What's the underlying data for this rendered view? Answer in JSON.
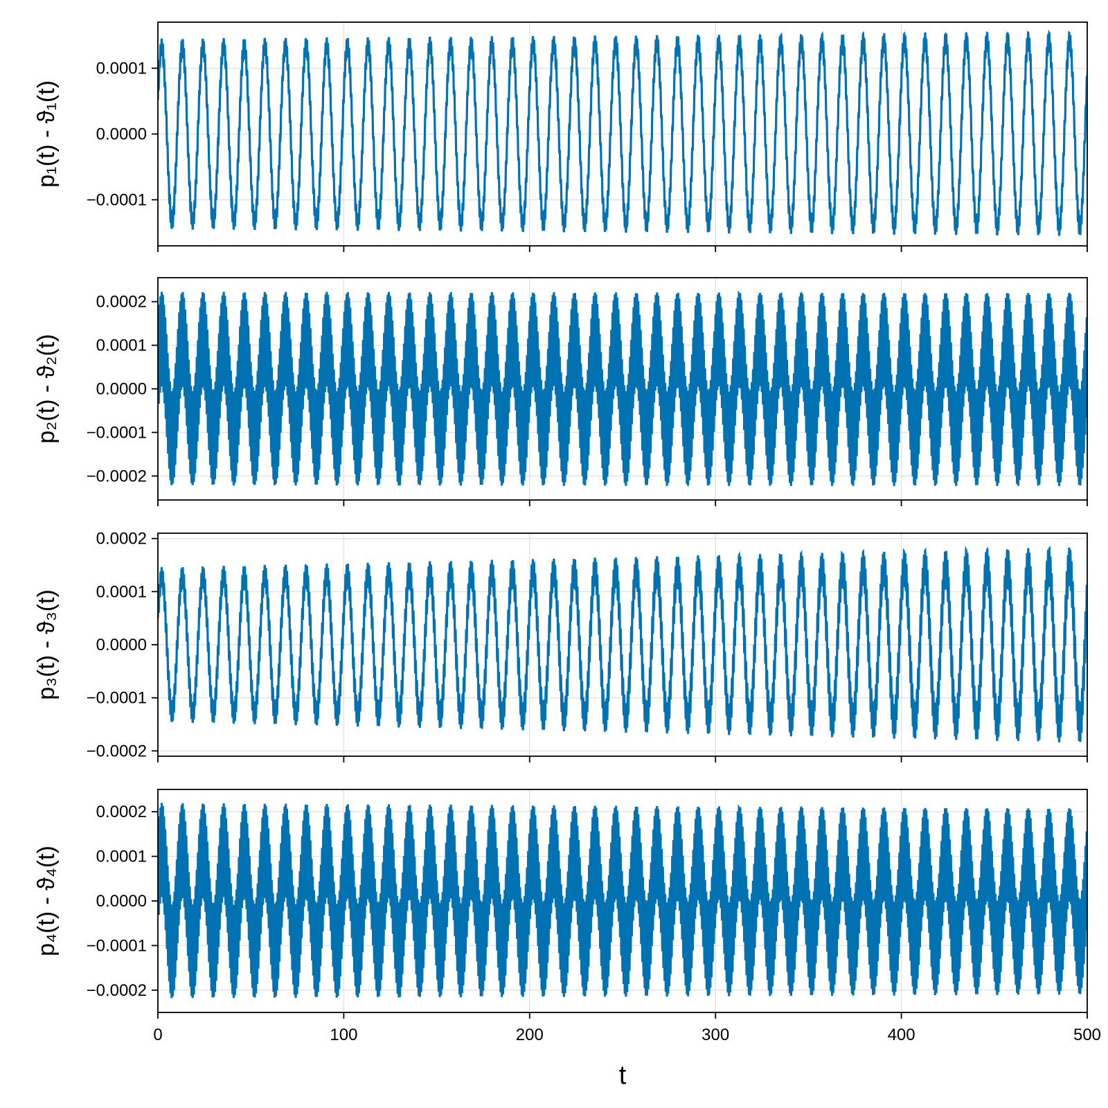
{
  "figure": {
    "line_color": "#0072B2",
    "grid_color": "#e3e3e3",
    "xlabel": "t"
  },
  "chart_data": [
    {
      "type": "line",
      "title": "",
      "ylabel": "p₁(t) - ϑ₁(t)",
      "xlim": [
        0,
        500
      ],
      "ylim": [
        -0.00017,
        0.00017
      ],
      "xticks": [
        0,
        100,
        200,
        300,
        400,
        500
      ],
      "yticks": [
        {
          "value": 0.0001,
          "label": "0.0001"
        },
        {
          "value": 0.0,
          "label": "0.0000"
        },
        {
          "value": -0.0001,
          "label": "−0.0001"
        }
      ],
      "grid": true,
      "series": [
        {
          "signal": {
            "slow_amp": 0.000133,
            "slow_period": 11.1,
            "fast_amp": 1.2e-05,
            "fast_period": 0.63,
            "slow_amp_end": 0.000143,
            "offset": 0.0
          }
        }
      ]
    },
    {
      "type": "line",
      "title": "",
      "ylabel": "p₂(t) - ϑ₂(t)",
      "xlim": [
        0,
        500
      ],
      "ylim": [
        -0.000255,
        0.000255
      ],
      "xticks": [
        0,
        100,
        200,
        300,
        400,
        500
      ],
      "yticks": [
        {
          "value": 0.0002,
          "label": "0.0002"
        },
        {
          "value": 0.0001,
          "label": "0.0001"
        },
        {
          "value": 0.0,
          "label": "0.0000"
        },
        {
          "value": -0.0001,
          "label": "−0.0001"
        },
        {
          "value": -0.0002,
          "label": "−0.0002"
        }
      ],
      "grid": true,
      "series": [
        {
          "signal": {
            "slow_amp": 0.000115,
            "slow_period": 11.1,
            "fast_amp": 0.000108,
            "fast_period": 0.63,
            "slow_amp_end": 0.000115,
            "offset": 0.0
          }
        }
      ]
    },
    {
      "type": "line",
      "title": "",
      "ylabel": "p₃(t) - ϑ₃(t)",
      "xlim": [
        0,
        500
      ],
      "ylim": [
        -0.00021,
        0.00021
      ],
      "xticks": [
        0,
        100,
        200,
        300,
        400,
        500
      ],
      "yticks": [
        {
          "value": 0.0002,
          "label": "0.0002"
        },
        {
          "value": 0.0001,
          "label": "0.0001"
        },
        {
          "value": 0.0,
          "label": "0.0000"
        },
        {
          "value": -0.0001,
          "label": "−0.0001"
        },
        {
          "value": -0.0002,
          "label": "−0.0002"
        }
      ],
      "grid": true,
      "series": [
        {
          "signal": {
            "slow_amp": 0.000128,
            "slow_period": 11.1,
            "fast_amp": 1.8e-05,
            "fast_period": 0.63,
            "slow_amp_end": 0.00015,
            "offset": 0.0,
            "fast_amp_end": 3.5e-05
          }
        }
      ]
    },
    {
      "type": "line",
      "title": "",
      "ylabel": "p₄(t) - ϑ₄(t)",
      "xlim": [
        0,
        500
      ],
      "ylim": [
        -0.00025,
        0.00025
      ],
      "xticks": [
        0,
        100,
        200,
        300,
        400,
        500
      ],
      "yticks": [
        {
          "value": 0.0002,
          "label": "0.0002"
        },
        {
          "value": 0.0001,
          "label": "0.0001"
        },
        {
          "value": 0.0,
          "label": "0.0000"
        },
        {
          "value": -0.0001,
          "label": "−0.0001"
        },
        {
          "value": -0.0002,
          "label": "−0.0002"
        }
      ],
      "grid": true,
      "series": [
        {
          "signal": {
            "slow_amp": 0.000115,
            "slow_period": 11.1,
            "fast_amp": 0.000105,
            "fast_period": 0.63,
            "slow_amp_end": 0.000105,
            "offset": 0.0
          }
        }
      ]
    }
  ]
}
